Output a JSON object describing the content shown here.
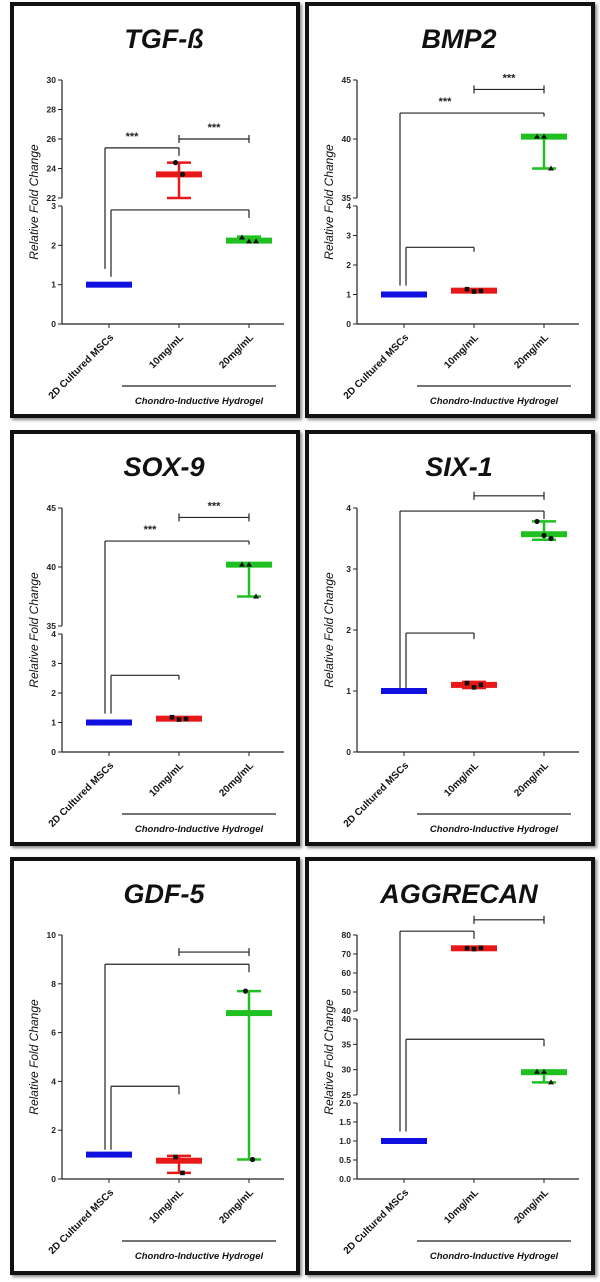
{
  "chart_data": [
    {
      "type": "floating-bar-with-range",
      "title": "TGF-ß",
      "ylabel": "Relative Fold Change",
      "group_label": "Chondro-Inductive Hydrogel",
      "categories": [
        "2D Cultured MSCs",
        "10mg/mL",
        "20mg/mL"
      ],
      "colors": [
        "#1010e0",
        "#e81818",
        "#20c020"
      ],
      "y_segments": [
        {
          "range": [
            0,
            3
          ],
          "ticks": [
            "0",
            "1",
            "2",
            "3"
          ]
        },
        {
          "range": [
            22,
            30
          ],
          "ticks": [
            "22",
            "24",
            "26",
            "28",
            "30"
          ]
        }
      ],
      "series": [
        {
          "mean": 1,
          "min": 1,
          "max": 1,
          "points": [],
          "marker": "square"
        },
        {
          "mean": 23.6,
          "min": 22.0,
          "max": 24.4,
          "points": [
            24.4,
            23.6
          ],
          "marker": "circle"
        },
        {
          "mean": 2.12,
          "min": 2.08,
          "max": 2.22,
          "points": [
            2.2,
            2.1,
            2.1
          ],
          "marker": "triangle"
        }
      ],
      "brackets": [
        {
          "from": 0,
          "to": 1,
          "y": 25.4,
          "left_end": 1.4,
          "right_end": 24.7,
          "style": "leg",
          "label": "***"
        },
        {
          "from": 0,
          "to": 2,
          "y": 2.9,
          "left_end": 1.2,
          "right_end": 2.55,
          "style": "leg",
          "label": ""
        },
        {
          "from": 1,
          "to": 2,
          "y": 26,
          "style": "cap",
          "label": "***"
        }
      ]
    },
    {
      "type": "floating-bar-with-range",
      "title": "BMP2",
      "ylabel": "Relative Fold Change",
      "group_label": "Chondro-Inductive Hydrogel",
      "categories": [
        "2D Cultured MSCs",
        "10mg/mL",
        "20mg/mL"
      ],
      "colors": [
        "#1010e0",
        "#e81818",
        "#20c020"
      ],
      "y_segments": [
        {
          "range": [
            0,
            4
          ],
          "ticks": [
            "0",
            "1",
            "2",
            "3",
            "4"
          ]
        },
        {
          "range": [
            35,
            45
          ],
          "ticks": [
            "35",
            "40",
            "45"
          ]
        }
      ],
      "series": [
        {
          "mean": 1,
          "min": 1,
          "max": 1,
          "points": [],
          "marker": "square"
        },
        {
          "mean": 1.13,
          "min": 1.1,
          "max": 1.18,
          "points": [
            1.18,
            1.1,
            1.12
          ],
          "marker": "square"
        },
        {
          "mean": 40.2,
          "min": 37.5,
          "max": 40.3,
          "points": [
            40.2,
            40.2,
            37.5
          ],
          "marker": "triangle"
        }
      ],
      "brackets": [
        {
          "from": 0,
          "to": 2,
          "y": 42.2,
          "left_end": 1.3,
          "right_end": 41.9,
          "style": "leg",
          "label": "***"
        },
        {
          "from": 0,
          "to": 1,
          "y": 2.6,
          "left_end": 1.3,
          "right_end": 2.45,
          "style": "leg",
          "label": ""
        },
        {
          "from": 1,
          "to": 2,
          "y": 44.2,
          "style": "cap",
          "label": "***"
        }
      ]
    },
    {
      "type": "floating-bar-with-range",
      "title": "SOX-9",
      "ylabel": "Relative Fold Change",
      "group_label": "Chondro-Inductive Hydrogel",
      "categories": [
        "2D Cultured MSCs",
        "10mg/mL",
        "20mg/mL"
      ],
      "colors": [
        "#1010e0",
        "#e81818",
        "#20c020"
      ],
      "y_segments": [
        {
          "range": [
            0,
            4
          ],
          "ticks": [
            "0",
            "1",
            "2",
            "3",
            "4"
          ]
        },
        {
          "range": [
            35,
            45
          ],
          "ticks": [
            "35",
            "40",
            "45"
          ]
        }
      ],
      "series": [
        {
          "mean": 1,
          "min": 1,
          "max": 1,
          "points": [],
          "marker": "square"
        },
        {
          "mean": 1.13,
          "min": 1.1,
          "max": 1.18,
          "points": [
            1.18,
            1.1,
            1.12
          ],
          "marker": "square"
        },
        {
          "mean": 40.2,
          "min": 37.5,
          "max": 40.3,
          "points": [
            40.2,
            40.2,
            37.5
          ],
          "marker": "triangle"
        }
      ],
      "brackets": [
        {
          "from": 0,
          "to": 2,
          "y": 42.2,
          "left_end": 1.3,
          "right_end": 41.9,
          "style": "leg",
          "label": "***"
        },
        {
          "from": 0,
          "to": 1,
          "y": 2.6,
          "left_end": 1.3,
          "right_end": 2.45,
          "style": "leg",
          "label": ""
        },
        {
          "from": 1,
          "to": 2,
          "y": 44.2,
          "style": "cap",
          "label": "***"
        }
      ]
    },
    {
      "type": "floating-bar-with-range",
      "title": "SIX-1",
      "ylabel": "Relative Fold Change",
      "group_label": "Chondro-Inductive Hydrogel",
      "categories": [
        "2D Cultured MSCs",
        "10mg/mL",
        "20mg/mL"
      ],
      "colors": [
        "#1010e0",
        "#e81818",
        "#20c020"
      ],
      "y_segments": [
        {
          "range": [
            0,
            4
          ],
          "ticks": [
            "0",
            "1",
            "2",
            "3",
            "4"
          ]
        }
      ],
      "series": [
        {
          "mean": 1,
          "min": 1,
          "max": 1,
          "points": [],
          "marker": "square"
        },
        {
          "mean": 1.1,
          "min": 1.05,
          "max": 1.15,
          "points": [
            1.13,
            1.06,
            1.1
          ],
          "marker": "square"
        },
        {
          "mean": 3.57,
          "min": 3.48,
          "max": 3.78,
          "points": [
            3.78,
            3.55,
            3.5
          ],
          "marker": "circle"
        }
      ],
      "brackets": [
        {
          "from": 0,
          "to": 2,
          "y": 3.95,
          "left_end": 1.05,
          "right_end": 3.82,
          "style": "leg",
          "label": ""
        },
        {
          "from": 0,
          "to": 1,
          "y": 1.95,
          "left_end": 1.05,
          "right_end": 1.85,
          "style": "leg",
          "label": ""
        },
        {
          "from": 1,
          "to": 2,
          "y": 4.2,
          "style": "cap",
          "label": ""
        }
      ]
    },
    {
      "type": "floating-bar-with-range",
      "title": "GDF-5",
      "ylabel": "Relative Fold Change",
      "group_label": "Chondro-Inductive Hydrogel",
      "categories": [
        "2D Cultured MSCs",
        "10mg/mL",
        "20mg/mL"
      ],
      "colors": [
        "#1010e0",
        "#e81818",
        "#20c020"
      ],
      "y_segments": [
        {
          "range": [
            0,
            10
          ],
          "ticks": [
            "0",
            "2",
            "4",
            "6",
            "8",
            "10"
          ]
        }
      ],
      "series": [
        {
          "mean": 1,
          "min": 1,
          "max": 1,
          "points": [],
          "marker": "square"
        },
        {
          "mean": 0.75,
          "min": 0.25,
          "max": 0.95,
          "points": [
            0.9,
            0.25
          ],
          "marker": "square"
        },
        {
          "mean": 6.8,
          "min": 0.8,
          "max": 7.7,
          "points": [
            7.7,
            0.8
          ],
          "marker": "circle"
        }
      ],
      "brackets": [
        {
          "from": 0,
          "to": 2,
          "y": 8.8,
          "left_end": 1.2,
          "right_end": 8.3,
          "style": "leg",
          "label": ""
        },
        {
          "from": 0,
          "to": 1,
          "y": 3.8,
          "left_end": 1.2,
          "right_end": 3.4,
          "style": "leg",
          "label": ""
        },
        {
          "from": 1,
          "to": 2,
          "y": 9.3,
          "style": "cap",
          "label": ""
        }
      ]
    },
    {
      "type": "floating-bar-with-range",
      "title": "AGGRECAN",
      "ylabel": "Relative Fold Change",
      "group_label": "Chondro-Inductive Hydrogel",
      "categories": [
        "2D Cultured MSCs",
        "10mg/mL",
        "20mg/mL"
      ],
      "colors": [
        "#1010e0",
        "#e81818",
        "#20c020"
      ],
      "y_segments": [
        {
          "range": [
            0,
            2
          ],
          "ticks": [
            "0.0",
            "0.5",
            "1.0",
            "1.5",
            "2.0"
          ]
        },
        {
          "range": [
            25,
            40
          ],
          "ticks": [
            "25",
            "30",
            "35",
            "40"
          ]
        },
        {
          "range": [
            40,
            80
          ],
          "ticks": [
            "40",
            "50",
            "60",
            "70",
            "80"
          ]
        }
      ],
      "series": [
        {
          "mean": 1,
          "min": 1,
          "max": 1,
          "points": [],
          "marker": "square"
        },
        {
          "mean": 73,
          "min": 72.5,
          "max": 73.5,
          "points": [
            73,
            72.6,
            73.2
          ],
          "marker": "square"
        },
        {
          "mean": 29.5,
          "min": 27.5,
          "max": 29.8,
          "points": [
            29.6,
            29.6,
            27.5
          ],
          "marker": "triangle"
        }
      ],
      "brackets": [
        {
          "from": 0,
          "to": 1,
          "y": 82,
          "left_end": 1.25,
          "right_end": 78,
          "style": "leg",
          "label": ""
        },
        {
          "from": 0,
          "to": 2,
          "y": 36,
          "left_end": 1.25,
          "right_end": 34.6,
          "style": "leg",
          "label": ""
        },
        {
          "from": 1,
          "to": 2,
          "y": 88,
          "style": "cap",
          "label": ""
        }
      ]
    }
  ]
}
